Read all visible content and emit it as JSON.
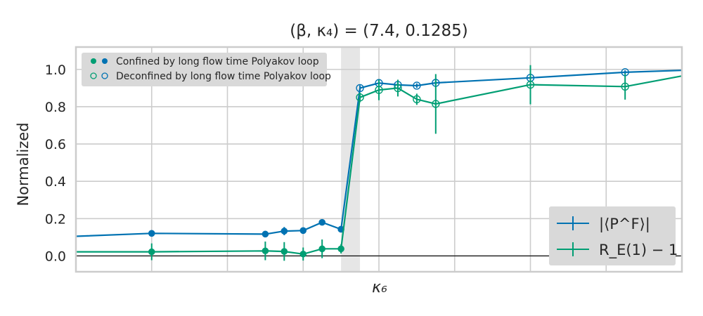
{
  "chart_data": {
    "type": "line",
    "title": "(β, κ₄) = (7.4, 0.1285)",
    "xlabel": "κ₆",
    "ylabel": "Normalized",
    "ylim": [
      -0.085,
      1.12
    ],
    "xlim": [
      0,
      32
    ],
    "yticks": [
      "0.0",
      "0.2",
      "0.4",
      "0.6",
      "0.8",
      "1.0"
    ],
    "grid": true,
    "transition_band": [
      14.0,
      15.0
    ],
    "series": [
      {
        "name": "|⟨P^F⟩|",
        "color": "#0072B2",
        "points": [
          {
            "x": 0,
            "y": 0.105,
            "err": 0,
            "marker": "none"
          },
          {
            "x": 4,
            "y": 0.121,
            "err": 0.007,
            "marker": "filled"
          },
          {
            "x": 10,
            "y": 0.117,
            "err": 0.008,
            "marker": "filled"
          },
          {
            "x": 11,
            "y": 0.133,
            "err": 0.022,
            "marker": "filled"
          },
          {
            "x": 12,
            "y": 0.136,
            "err": 0.012,
            "marker": "filled"
          },
          {
            "x": 13,
            "y": 0.18,
            "err": 0.01,
            "marker": "filled"
          },
          {
            "x": 14,
            "y": 0.143,
            "err": 0.012,
            "marker": "filled"
          },
          {
            "x": 15,
            "y": 0.9,
            "err": 0.015,
            "marker": "open"
          },
          {
            "x": 16,
            "y": 0.927,
            "err": 0.012,
            "marker": "open"
          },
          {
            "x": 17,
            "y": 0.917,
            "err": 0.015,
            "marker": "open"
          },
          {
            "x": 18,
            "y": 0.913,
            "err": 0.012,
            "marker": "open"
          },
          {
            "x": 19,
            "y": 0.928,
            "err": 0.012,
            "marker": "open"
          },
          {
            "x": 24,
            "y": 0.955,
            "err": 0.012,
            "marker": "open"
          },
          {
            "x": 29,
            "y": 0.985,
            "err": 0.01,
            "marker": "open"
          },
          {
            "x": 32,
            "y": 0.995,
            "err": 0,
            "marker": "none"
          }
        ]
      },
      {
        "name": "R_E(1) − 1",
        "color": "#009E73",
        "points": [
          {
            "x": 0,
            "y": 0.022,
            "err": 0,
            "marker": "none"
          },
          {
            "x": 4,
            "y": 0.022,
            "err": 0.045,
            "marker": "filled"
          },
          {
            "x": 10,
            "y": 0.027,
            "err": 0.05,
            "marker": "filled"
          },
          {
            "x": 11,
            "y": 0.024,
            "err": 0.05,
            "marker": "filled"
          },
          {
            "x": 12,
            "y": 0.01,
            "err": 0.035,
            "marker": "filled"
          },
          {
            "x": 13,
            "y": 0.038,
            "err": 0.05,
            "marker": "filled"
          },
          {
            "x": 14,
            "y": 0.038,
            "err": 0.025,
            "marker": "filled"
          },
          {
            "x": 15,
            "y": 0.85,
            "err": 0.025,
            "marker": "open"
          },
          {
            "x": 16,
            "y": 0.89,
            "err": 0.055,
            "marker": "open"
          },
          {
            "x": 17,
            "y": 0.9,
            "err": 0.045,
            "marker": "open"
          },
          {
            "x": 18,
            "y": 0.84,
            "err": 0.03,
            "marker": "open"
          },
          {
            "x": 19,
            "y": 0.815,
            "err": 0.16,
            "marker": "open"
          },
          {
            "x": 24,
            "y": 0.918,
            "err": 0.105,
            "marker": "open"
          },
          {
            "x": 29,
            "y": 0.908,
            "err": 0.07,
            "marker": "open"
          },
          {
            "x": 32,
            "y": 0.965,
            "err": 0,
            "marker": "none"
          }
        ]
      }
    ],
    "legend_markers": {
      "entries": [
        "Confined by long flow time Polyakov loop",
        "Deconfined by long flow time Polyakov loop"
      ],
      "placement": "top-left"
    },
    "legend_series": {
      "placement": "bottom-right"
    }
  }
}
